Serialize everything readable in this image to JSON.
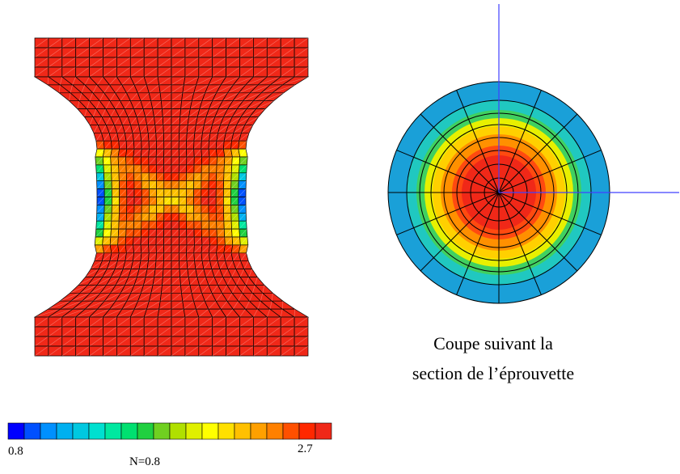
{
  "caption": {
    "line1": "Coupe suivant la",
    "line2": "section de l’éprouvette"
  },
  "colorbar": {
    "min_label": "0.8",
    "max_label": "2.7",
    "note": "N=0.8"
  }
}
